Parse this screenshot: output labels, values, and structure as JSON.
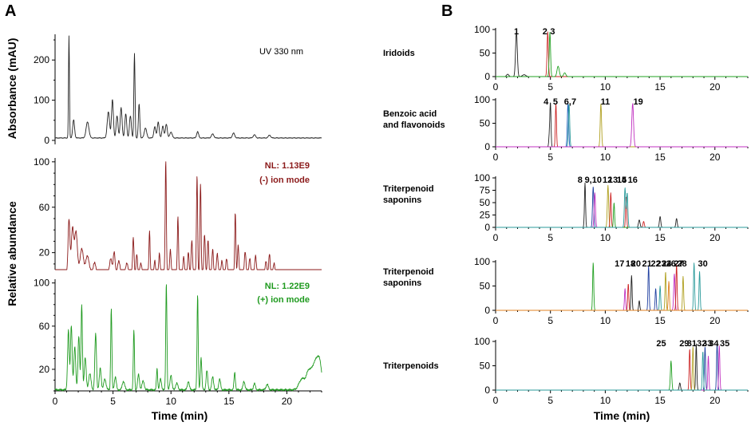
{
  "chart_data": [
    {
      "panel": "A",
      "type": "line",
      "title": "UV 330 nm",
      "ylabel": "Absorbance (mAU)",
      "ylim": [
        -10,
        260
      ],
      "yticks": [
        0,
        100,
        200
      ],
      "xlim": [
        0,
        23
      ],
      "color": "#222222",
      "peaks": [
        [
          1.2,
          255,
          0.04
        ],
        [
          1.6,
          45,
          0.08
        ],
        [
          2.8,
          40,
          0.12
        ],
        [
          4.6,
          65,
          0.1
        ],
        [
          4.95,
          95,
          0.08
        ],
        [
          5.35,
          55,
          0.08
        ],
        [
          5.7,
          75,
          0.08
        ],
        [
          6.1,
          60,
          0.08
        ],
        [
          6.5,
          55,
          0.08
        ],
        [
          6.85,
          210,
          0.05
        ],
        [
          7.25,
          85,
          0.06
        ],
        [
          7.8,
          25,
          0.1
        ],
        [
          8.6,
          28,
          0.08
        ],
        [
          8.9,
          40,
          0.08
        ],
        [
          9.3,
          30,
          0.08
        ],
        [
          9.6,
          35,
          0.08
        ],
        [
          10.0,
          15,
          0.1
        ],
        [
          12.3,
          16,
          0.08
        ],
        [
          13.6,
          10,
          0.1
        ],
        [
          15.4,
          12,
          0.1
        ],
        [
          17.2,
          8,
          0.1
        ],
        [
          18.5,
          7,
          0.1
        ]
      ],
      "baseline": 6
    },
    {
      "panel": "A",
      "type": "line",
      "annotations": [
        "NL: 1.13E9",
        "(-) ion mode"
      ],
      "ylabel": "Relative abundance",
      "ylim": [
        5,
        102
      ],
      "yticks": [
        20,
        60,
        100
      ],
      "xlim": [
        0,
        23
      ],
      "color": "#8b1a1a",
      "peaks": [
        [
          1.2,
          48,
          0.08
        ],
        [
          1.5,
          40,
          0.1
        ],
        [
          1.8,
          38,
          0.12
        ],
        [
          2.3,
          22,
          0.15
        ],
        [
          2.8,
          16,
          0.15
        ],
        [
          3.4,
          10,
          0.12
        ],
        [
          4.8,
          14,
          0.1
        ],
        [
          5.1,
          20,
          0.08
        ],
        [
          5.5,
          12,
          0.1
        ],
        [
          6.2,
          10,
          0.1
        ],
        [
          6.75,
          32,
          0.06
        ],
        [
          7.05,
          18,
          0.06
        ],
        [
          7.4,
          10,
          0.08
        ],
        [
          8.15,
          38,
          0.05
        ],
        [
          8.6,
          12,
          0.06
        ],
        [
          9.0,
          18,
          0.06
        ],
        [
          9.55,
          100,
          0.05
        ],
        [
          9.95,
          22,
          0.06
        ],
        [
          10.6,
          50,
          0.05
        ],
        [
          11.1,
          16,
          0.06
        ],
        [
          11.5,
          20,
          0.06
        ],
        [
          11.8,
          30,
          0.06
        ],
        [
          12.25,
          88,
          0.05
        ],
        [
          12.55,
          80,
          0.05
        ],
        [
          12.9,
          35,
          0.06
        ],
        [
          13.2,
          30,
          0.06
        ],
        [
          13.6,
          22,
          0.06
        ],
        [
          14.0,
          18,
          0.07
        ],
        [
          14.4,
          12,
          0.07
        ],
        [
          14.8,
          14,
          0.07
        ],
        [
          15.55,
          55,
          0.05
        ],
        [
          15.8,
          25,
          0.06
        ],
        [
          16.4,
          20,
          0.07
        ],
        [
          16.8,
          14,
          0.07
        ],
        [
          17.3,
          16,
          0.07
        ],
        [
          18.2,
          12,
          0.07
        ],
        [
          18.5,
          18,
          0.06
        ],
        [
          18.9,
          10,
          0.07
        ]
      ],
      "baseline": 1
    },
    {
      "panel": "A",
      "type": "line",
      "annotations": [
        "NL: 1.22E9",
        "(+) ion mode"
      ],
      "ylim": [
        0,
        102
      ],
      "yticks": [
        20,
        60,
        100
      ],
      "xlim": [
        0,
        23
      ],
      "xlabel": "Time (min)",
      "xticks": [
        0,
        5,
        10,
        15,
        20
      ],
      "color": "#1f9a1f",
      "peaks": [
        [
          1.15,
          55,
          0.07
        ],
        [
          1.4,
          60,
          0.07
        ],
        [
          1.7,
          40,
          0.08
        ],
        [
          2.05,
          50,
          0.07
        ],
        [
          2.3,
          78,
          0.06
        ],
        [
          2.6,
          30,
          0.08
        ],
        [
          3.0,
          15,
          0.1
        ],
        [
          3.5,
          52,
          0.07
        ],
        [
          3.9,
          20,
          0.08
        ],
        [
          4.3,
          10,
          0.1
        ],
        [
          4.85,
          75,
          0.05
        ],
        [
          5.2,
          12,
          0.08
        ],
        [
          5.9,
          8,
          0.1
        ],
        [
          6.8,
          55,
          0.05
        ],
        [
          7.2,
          14,
          0.08
        ],
        [
          7.6,
          8,
          0.1
        ],
        [
          8.8,
          20,
          0.05
        ],
        [
          9.1,
          10,
          0.08
        ],
        [
          9.6,
          100,
          0.05
        ],
        [
          10.0,
          14,
          0.08
        ],
        [
          10.5,
          6,
          0.1
        ],
        [
          11.5,
          8,
          0.08
        ],
        [
          12.3,
          88,
          0.05
        ],
        [
          12.6,
          30,
          0.06
        ],
        [
          13.1,
          18,
          0.07
        ],
        [
          13.6,
          12,
          0.08
        ],
        [
          14.2,
          10,
          0.08
        ],
        [
          15.5,
          16,
          0.06
        ],
        [
          16.3,
          8,
          0.08
        ],
        [
          17.2,
          6,
          0.08
        ],
        [
          18.3,
          5,
          0.1
        ],
        [
          21.3,
          10,
          0.25
        ],
        [
          21.9,
          17,
          0.22
        ],
        [
          22.4,
          22,
          0.22
        ],
        [
          22.8,
          26,
          0.2
        ]
      ],
      "baseline": 1
    },
    {
      "panel": "B",
      "type": "line",
      "group": "Iridoids",
      "ylim": [
        0,
        100
      ],
      "yticks": [
        0,
        50,
        100
      ],
      "xlim": [
        0,
        23
      ],
      "peak_labels": [
        {
          "text": "1",
          "x": 1.9
        },
        {
          "text": "2",
          "x": 4.5
        },
        {
          "text": "3",
          "x": 5.2
        }
      ],
      "series": [
        {
          "color": "#222222",
          "peaks": [
            [
              1.9,
              95,
              0.08
            ],
            [
              1.1,
              5,
              0.1
            ],
            [
              2.6,
              4,
              0.15
            ]
          ]
        },
        {
          "color": "#cc2222",
          "peaks": [
            [
              4.75,
              95,
              0.06
            ]
          ]
        },
        {
          "color": "#22a022",
          "peaks": [
            [
              4.95,
              95,
              0.06
            ],
            [
              5.7,
              22,
              0.1
            ],
            [
              6.3,
              8,
              0.1
            ]
          ]
        }
      ]
    },
    {
      "panel": "B",
      "type": "line",
      "group": "Benzoic acid and flavonoids",
      "ylim": [
        0,
        100
      ],
      "yticks": [
        0,
        50,
        100
      ],
      "xlim": [
        0,
        23
      ],
      "peak_labels": [
        {
          "text": "4",
          "x": 4.6
        },
        {
          "text": "5",
          "x": 5.45
        },
        {
          "text": "6,7",
          "x": 6.8
        },
        {
          "text": "11",
          "x": 10.0
        },
        {
          "text": "19",
          "x": 13.0
        }
      ],
      "series": [
        {
          "color": "#222222",
          "peaks": [
            [
              5.0,
              92,
              0.05
            ],
            [
              4.9,
              25,
              0.05
            ]
          ]
        },
        {
          "color": "#cc2222",
          "peaks": [
            [
              5.5,
              92,
              0.05
            ]
          ]
        },
        {
          "color": "#1f5fbf",
          "peaks": [
            [
              6.6,
              92,
              0.06
            ]
          ]
        },
        {
          "color": "#2a9a9a",
          "peaks": [
            [
              6.7,
              90,
              0.06
            ]
          ]
        },
        {
          "color": "#b0a020",
          "peaks": [
            [
              9.6,
              92,
              0.06
            ]
          ]
        },
        {
          "color": "#c030c0",
          "peaks": [
            [
              12.5,
              92,
              0.08
            ]
          ]
        }
      ]
    },
    {
      "panel": "B",
      "type": "line",
      "group": "Triterpenoid saponins",
      "ylim": [
        0,
        100
      ],
      "yticks": [
        0,
        25,
        50,
        75,
        100
      ],
      "xlim": [
        0,
        23
      ],
      "peak_labels": [
        {
          "text": "8",
          "x": 7.7
        },
        {
          "text": "9,10",
          "x": 8.9
        },
        {
          "text": "12",
          "x": 10.2
        },
        {
          "text": "13",
          "x": 10.7
        },
        {
          "text": "14",
          "x": 11.5
        },
        {
          "text": "15",
          "x": 11.5
        },
        {
          "text": "16",
          "x": 12.5
        }
      ],
      "series": [
        {
          "color": "#222222",
          "peaks": [
            [
              8.15,
              90,
              0.05
            ],
            [
              15.0,
              22,
              0.06
            ],
            [
              16.5,
              18,
              0.06
            ],
            [
              13.1,
              15,
              0.07
            ]
          ]
        },
        {
          "color": "#1f3fa0",
          "peaks": [
            [
              8.9,
              82,
              0.06
            ]
          ]
        },
        {
          "color": "#c030c0",
          "peaks": [
            [
              9.05,
              70,
              0.06
            ]
          ]
        },
        {
          "color": "#b0a020",
          "peaks": [
            [
              10.25,
              85,
              0.06
            ]
          ]
        },
        {
          "color": "#cc2222",
          "peaks": [
            [
              10.5,
              70,
              0.05
            ],
            [
              11.9,
              62,
              0.05
            ],
            [
              13.5,
              12,
              0.06
            ]
          ]
        },
        {
          "color": "#22a022",
          "peaks": [
            [
              10.8,
              50,
              0.05
            ]
          ]
        },
        {
          "color": "#2a9a9a",
          "peaks": [
            [
              11.8,
              80,
              0.06
            ],
            [
              12.0,
              70,
              0.06
            ]
          ]
        }
      ]
    },
    {
      "panel": "B",
      "type": "line",
      "group": "Triterpenoid saponins",
      "ylim": [
        0,
        100
      ],
      "yticks": [
        0,
        50,
        100
      ],
      "xlim": [
        0,
        23
      ],
      "peak_labels": [
        {
          "text": "17",
          "x": 11.3
        },
        {
          "text": "18",
          "x": 12.3
        },
        {
          "text": "20",
          "x": 12.8
        },
        {
          "text": "21",
          "x": 13.8
        },
        {
          "text": "22",
          "x": 14.6
        },
        {
          "text": "23",
          "x": 15.1
        },
        {
          "text": "24",
          "x": 15.6
        },
        {
          "text": "26",
          "x": 16.0
        },
        {
          "text": "27",
          "x": 16.7
        },
        {
          "text": "28",
          "x": 17.0
        },
        {
          "text": "30",
          "x": 18.9
        }
      ],
      "series": [
        {
          "color": "#22a022",
          "peaks": [
            [
              8.9,
              98,
              0.05
            ]
          ]
        },
        {
          "color": "#c030c0",
          "peaks": [
            [
              11.8,
              45,
              0.05
            ],
            [
              16.3,
              75,
              0.06
            ]
          ]
        },
        {
          "color": "#cc2222",
          "peaks": [
            [
              12.1,
              55,
              0.05
            ],
            [
              16.5,
              95,
              0.05
            ]
          ]
        },
        {
          "color": "#222222",
          "peaks": [
            [
              12.4,
              72,
              0.05
            ],
            [
              13.1,
              20,
              0.05
            ]
          ]
        },
        {
          "color": "#1f3fa0",
          "peaks": [
            [
              13.95,
              92,
              0.05
            ],
            [
              14.6,
              45,
              0.05
            ]
          ]
        },
        {
          "color": "#2a9a9a",
          "peaks": [
            [
              15.0,
              50,
              0.05
            ],
            [
              18.1,
              98,
              0.05
            ],
            [
              18.6,
              80,
              0.05
            ]
          ]
        },
        {
          "color": "#b0a020",
          "peaks": [
            [
              15.5,
              80,
              0.05
            ],
            [
              17.1,
              70,
              0.05
            ]
          ]
        },
        {
          "color": "#e08020",
          "peaks": [
            [
              15.8,
              60,
              0.05
            ]
          ]
        }
      ]
    },
    {
      "panel": "B",
      "type": "line",
      "group": "Triterpenoids",
      "ylim": [
        0,
        100
      ],
      "yticks": [
        0,
        50,
        100
      ],
      "xlim": [
        0,
        23
      ],
      "xlabel": "Time (min)",
      "xticks": [
        0,
        5,
        10,
        15,
        20
      ],
      "peak_labels": [
        {
          "text": "25",
          "x": 15.1
        },
        {
          "text": "29",
          "x": 17.2
        },
        {
          "text": "31",
          "x": 17.9
        },
        {
          "text": "32",
          "x": 18.8
        },
        {
          "text": "33",
          "x": 19.3
        },
        {
          "text": "34",
          "x": 19.9
        },
        {
          "text": "35",
          "x": 20.9
        }
      ],
      "series": [
        {
          "color": "#22a022",
          "peaks": [
            [
              16.0,
              60,
              0.06
            ]
          ]
        },
        {
          "color": "#222222",
          "peaks": [
            [
              16.8,
              15,
              0.06
            ],
            [
              18.3,
              95,
              0.05
            ]
          ]
        },
        {
          "color": "#cc2222",
          "peaks": [
            [
              17.7,
              85,
              0.05
            ]
          ]
        },
        {
          "color": "#b0a020",
          "peaks": [
            [
              18.0,
              90,
              0.05
            ]
          ]
        },
        {
          "color": "#1f3fa0",
          "peaks": [
            [
              19.1,
              90,
              0.05
            ],
            [
              20.2,
              98,
              0.05
            ]
          ]
        },
        {
          "color": "#c030c0",
          "peaks": [
            [
              19.4,
              70,
              0.05
            ],
            [
              20.4,
              92,
              0.05
            ]
          ]
        },
        {
          "color": "#2a9a9a",
          "peaks": [
            [
              18.9,
              80,
              0.05
            ]
          ]
        }
      ]
    }
  ],
  "labels": {
    "panel_a": "A",
    "panel_b": "B",
    "uv_title": "UV 330 nm",
    "absorbance_label": "Absorbance (mAU)",
    "relative_label": "Relative abundance",
    "neg_nl": "NL: 1.13E9",
    "neg_mode": "(-) ion mode",
    "pos_nl": "NL: 1.22E9",
    "pos_mode": "(+) ion mode",
    "time_label": "Time (min)",
    "group1": "Iridoids",
    "group2_l1": "Benzoic acid",
    "group2_l2": "and flavonoids",
    "group3_l1": "Triterpenoid",
    "group3_l2": "saponins",
    "group4_l1": "Triterpenoid",
    "group4_l2": "saponins",
    "group5": "Triterpenoids"
  },
  "colors": {
    "neg_mode": "#8b1a1a",
    "pos_mode": "#1f9a1f"
  }
}
